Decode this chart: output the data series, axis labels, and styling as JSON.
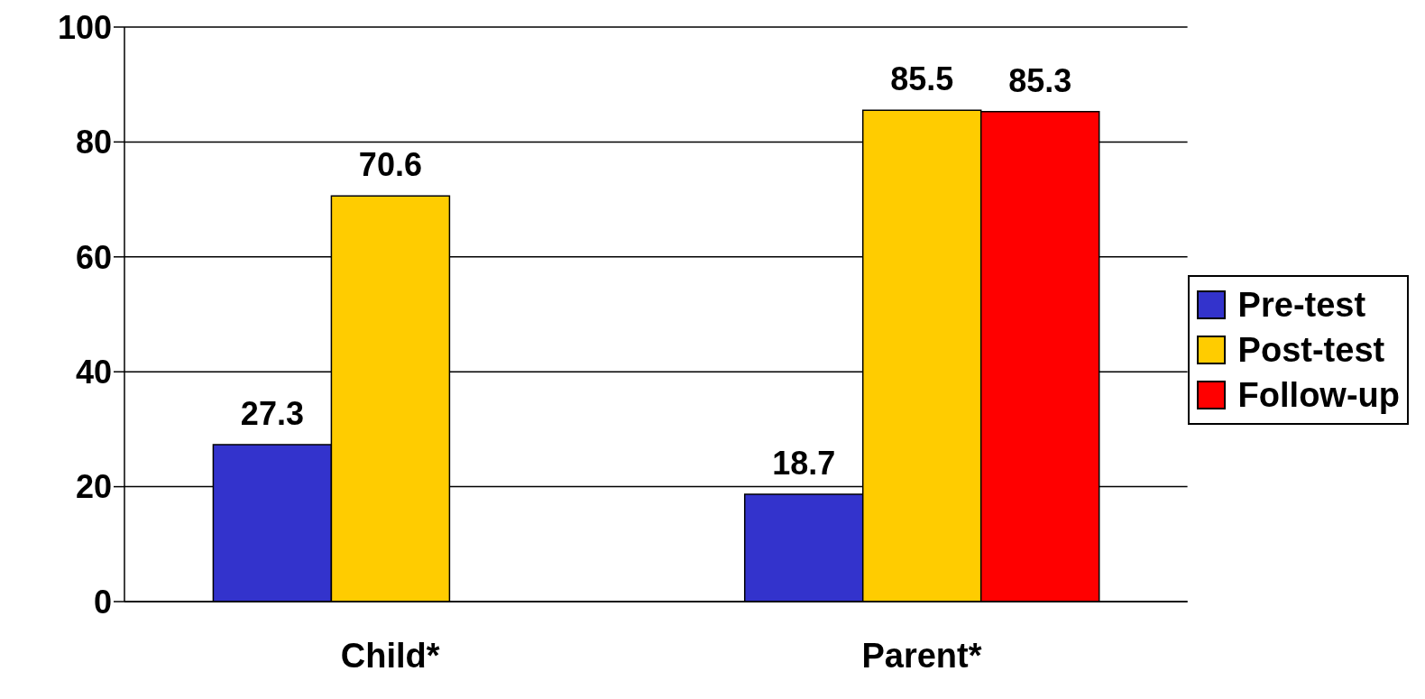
{
  "chart_data": {
    "type": "bar",
    "categories": [
      "Child*",
      "Parent*"
    ],
    "series": [
      {
        "name": "Pre-test",
        "color": "#3333cc",
        "values": [
          27.3,
          18.7
        ]
      },
      {
        "name": "Post-test",
        "color": "#ffcc00",
        "values": [
          70.6,
          85.5
        ]
      },
      {
        "name": "Follow-up",
        "color": "#ff0000",
        "values": [
          null,
          85.3
        ]
      }
    ],
    "ylim": [
      0,
      100
    ],
    "yticks": [
      0,
      20,
      40,
      60,
      80,
      100
    ],
    "grid": "y",
    "legend": "right",
    "data_labels": true
  }
}
